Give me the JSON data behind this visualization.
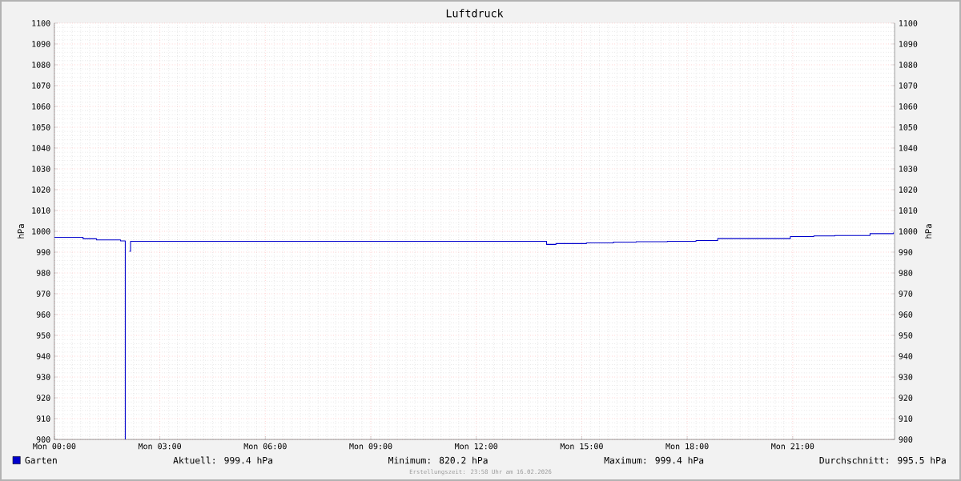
{
  "chart_data": {
    "type": "step",
    "title": "Luftdruck",
    "ylabel": "hPa",
    "y2label": "hPa",
    "x": [
      "2026-02-16T00:00",
      "2026-02-16T00:48",
      "2026-02-16T00:49",
      "2026-02-16T01:11",
      "2026-02-16T01:12",
      "2026-02-16T01:51",
      "2026-02-16T01:53",
      "2026-02-16T02:00",
      "2026-02-16T02:01",
      "2026-02-16T02:02",
      "2026-02-16T02:08",
      "2026-02-16T02:10",
      "2026-02-16T14:00",
      "2026-02-16T14:16",
      "2026-02-16T15:08",
      "2026-02-16T15:54",
      "2026-02-16T16:33",
      "2026-02-16T17:26",
      "2026-02-16T18:15",
      "2026-02-16T18:52",
      "2026-02-16T20:56",
      "2026-02-16T21:36",
      "2026-02-16T22:12",
      "2026-02-16T23:12",
      "2026-02-16T23:52"
    ],
    "series": [
      {
        "name": "Garten",
        "color": "#0000cc",
        "values": [
          997.1,
          997.1,
          996.4,
          996.4,
          995.9,
          995.9,
          995.4,
          995.4,
          900,
          null,
          990.4,
          995.2,
          993.7,
          994.1,
          994.4,
          994.8,
          995.0,
          995.2,
          995.6,
          996.5,
          997.5,
          997.8,
          998.0,
          998.9,
          999.4
        ]
      }
    ],
    "xlim": [
      "2026-02-16T00:00",
      "2026-02-16T23:54"
    ],
    "xticks": [
      {
        "value": "2026-02-16T00:00",
        "label": "Mon 00:00"
      },
      {
        "value": "2026-02-16T03:00",
        "label": "Mon 03:00"
      },
      {
        "value": "2026-02-16T06:00",
        "label": "Mon 06:00"
      },
      {
        "value": "2026-02-16T09:00",
        "label": "Mon 09:00"
      },
      {
        "value": "2026-02-16T12:00",
        "label": "Mon 12:00"
      },
      {
        "value": "2026-02-16T15:00",
        "label": "Mon 15:00"
      },
      {
        "value": "2026-02-16T18:00",
        "label": "Mon 18:00"
      },
      {
        "value": "2026-02-16T21:00",
        "label": "Mon 21:00"
      }
    ],
    "ylim": [
      900,
      1100
    ],
    "yticks": [
      900,
      910,
      920,
      930,
      940,
      950,
      960,
      970,
      980,
      990,
      1000,
      1010,
      1020,
      1030,
      1040,
      1050,
      1060,
      1070,
      1080,
      1090,
      1100
    ],
    "y2lim": [
      900,
      1100
    ],
    "y2ticks": [
      900,
      910,
      920,
      930,
      940,
      950,
      960,
      970,
      980,
      990,
      1000,
      1010,
      1020,
      1030,
      1040,
      1050,
      1060,
      1070,
      1080,
      1090,
      1100
    ],
    "grid": true,
    "legend": "bottom left",
    "annotations": [
      "Aktuell: 999.4 hPa",
      "Minimum: 820.2 hPa",
      "Maximum: 999.4 hPa",
      "Durchschnitt: 995.5 hPa",
      "Erstellungszeit: 23:58 Uhr am 16.02.2026"
    ]
  }
}
